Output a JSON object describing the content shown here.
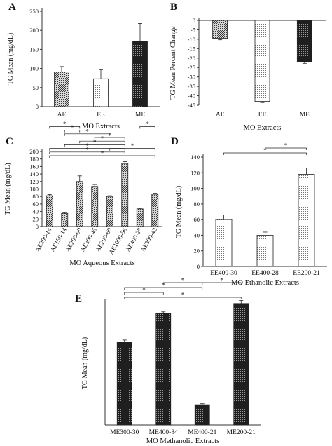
{
  "colors": {
    "ink": "#111111",
    "axis": "#333333",
    "bg": "#ffffff"
  },
  "chart_data": [
    {
      "id": "A",
      "panel_label": "A",
      "type": "bar",
      "categories": [
        "AE",
        "EE",
        "ME"
      ],
      "values": [
        91,
        73,
        171
      ],
      "errors": [
        14,
        24,
        47
      ],
      "patterns": [
        "medium",
        "light",
        "dark"
      ],
      "xlabel": "MO Extracts",
      "ylabel": "TG Mean (mg/dL)",
      "ylim": [
        0,
        250
      ],
      "yticks": [
        0,
        50,
        100,
        150,
        200,
        250
      ],
      "grid": false,
      "comparisons": []
    },
    {
      "id": "B",
      "panel_label": "B",
      "type": "bar",
      "categories": [
        "AE",
        "EE",
        "ME"
      ],
      "values": [
        -9.5,
        -43,
        -22
      ],
      "errors": [
        0.8,
        0.6,
        0.8
      ],
      "patterns": [
        "medium",
        "light",
        "dark"
      ],
      "xlabel": "MO Extracts",
      "ylabel": "TG Mean Percent Change",
      "ylim": [
        -45,
        0
      ],
      "yticks": [
        0,
        -5,
        -10,
        -15,
        -20,
        -25,
        -30,
        -35,
        -40,
        -45
      ],
      "grid": false,
      "comparisons": []
    },
    {
      "id": "C",
      "panel_label": "C",
      "type": "bar",
      "categories": [
        "AE200-14",
        "AE150-14",
        "AE200-90",
        "AE300-45",
        "AE200-60",
        "AE1000-56",
        "AE400-28",
        "AE300-42"
      ],
      "values": [
        82,
        35,
        120,
        107,
        80,
        168,
        47,
        86
      ],
      "errors": [
        3,
        2,
        15,
        5,
        2,
        5,
        2,
        3
      ],
      "patterns": [
        "medium",
        "medium",
        "medium",
        "medium",
        "medium",
        "medium",
        "medium",
        "medium"
      ],
      "xlabel": "MO Aqueous Extracts",
      "ylabel": "TG Mean (mg/dL)",
      "ylim": [
        0,
        200
      ],
      "yticks": [
        0,
        20,
        40,
        60,
        80,
        100,
        120,
        140,
        160,
        180,
        200
      ],
      "grid": false,
      "comparisons": [
        {
          "from": 0,
          "to": 7,
          "level": 1,
          "label": "*"
        },
        {
          "from": 0,
          "to": 5,
          "level": 2,
          "label": "*"
        },
        {
          "from": 0,
          "to": 5,
          "level": 3,
          "label": "*"
        },
        {
          "from": 1,
          "to": 5,
          "level": 4,
          "label": "*"
        },
        {
          "from": 4,
          "to": 7,
          "level": 3,
          "label": "*"
        },
        {
          "from": 2,
          "to": 5,
          "level": 5,
          "label": "*"
        },
        {
          "from": 3,
          "to": 5,
          "level": 6,
          "label": "*"
        },
        {
          "from": 1,
          "to": 4,
          "level": 7,
          "label": "*"
        },
        {
          "from": 1,
          "to": 2,
          "level": 8,
          "label": "*"
        },
        {
          "from": 0,
          "to": 2,
          "level": 9,
          "label": "*"
        },
        {
          "from": 6,
          "to": 7,
          "level": 9,
          "label": "*"
        }
      ]
    },
    {
      "id": "D",
      "panel_label": "D",
      "type": "bar",
      "categories": [
        "EE400-30",
        "EE400-28",
        "EE200-21"
      ],
      "values": [
        60,
        40,
        118
      ],
      "errors": [
        6,
        4,
        8
      ],
      "patterns": [
        "light",
        "light",
        "light"
      ],
      "xlabel": "MO Ethanolic Extracts",
      "ylabel": "TG Mean (mg/dL)",
      "ylim": [
        0,
        140
      ],
      "yticks": [
        0,
        20,
        40,
        60,
        80,
        100,
        120,
        140
      ],
      "grid": false,
      "comparisons": [
        {
          "from": 0,
          "to": 2,
          "level": 1,
          "label": "*"
        },
        {
          "from": 1,
          "to": 2,
          "level": 2,
          "label": "*"
        }
      ]
    },
    {
      "id": "E",
      "panel_label": "E",
      "type": "bar",
      "categories": [
        "ME300-30",
        "ME400-84",
        "ME400-21",
        "ME200-21"
      ],
      "values": [
        168,
        226,
        41,
        246
      ],
      "errors": [
        4,
        3,
        2,
        6
      ],
      "patterns": [
        "dark",
        "dark",
        "dark",
        "dark"
      ],
      "xlabel": "MO Methanolic Extracts",
      "ylabel": "TG Mean (mg/dL)",
      "ylim": [
        0,
        250
      ],
      "yticks": [],
      "grid": false,
      "comparisons": [
        {
          "from": 0,
          "to": 3,
          "level": 1,
          "label": "*"
        },
        {
          "from": 0,
          "to": 1,
          "level": 2,
          "label": "*"
        },
        {
          "from": 0,
          "to": 2,
          "level": 3,
          "label": "*"
        },
        {
          "from": 1,
          "to": 2,
          "level": 4,
          "label": "*"
        },
        {
          "from": 2,
          "to": 3,
          "level": 4,
          "label": "*"
        }
      ]
    }
  ]
}
